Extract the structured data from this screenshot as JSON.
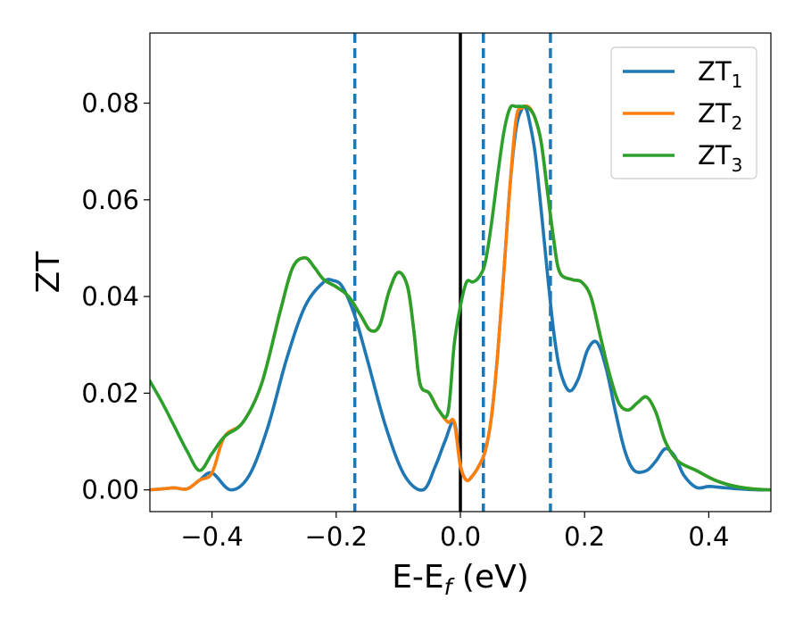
{
  "chart_data": {
    "type": "line",
    "xlabel_main": "E-E",
    "xlabel_sub": "f",
    "xlabel_unit": " (eV)",
    "ylabel": "ZT",
    "xlim": [
      -0.5,
      0.5
    ],
    "ylim": [
      -0.0045,
      0.0945
    ],
    "xticks": [
      {
        "v": -0.4,
        "label": "−0.4"
      },
      {
        "v": -0.2,
        "label": "−0.2"
      },
      {
        "v": 0.0,
        "label": "0.0"
      },
      {
        "v": 0.2,
        "label": "0.2"
      },
      {
        "v": 0.4,
        "label": "0.4"
      }
    ],
    "yticks": [
      {
        "v": 0.0,
        "label": "0.00"
      },
      {
        "v": 0.02,
        "label": "0.02"
      },
      {
        "v": 0.04,
        "label": "0.04"
      },
      {
        "v": 0.06,
        "label": "0.06"
      },
      {
        "v": 0.08,
        "label": "0.08"
      }
    ],
    "legend_position": "top-right",
    "grid": false,
    "reference_lines": [
      {
        "x": 0.0,
        "style": "solid",
        "color": "#000000"
      },
      {
        "x": -0.17,
        "style": "dashed",
        "color": "#1f77b4"
      },
      {
        "x": 0.037,
        "style": "dashed",
        "color": "#1f77b4"
      },
      {
        "x": 0.145,
        "style": "dashed",
        "color": "#1f77b4"
      }
    ],
    "series": [
      {
        "name_main": "ZT",
        "name_sub": "1",
        "color": "#1f77b4",
        "x": [
          -0.5,
          -0.48,
          -0.46,
          -0.44,
          -0.42,
          -0.4,
          -0.37,
          -0.34,
          -0.31,
          -0.28,
          -0.25,
          -0.22,
          -0.205,
          -0.19,
          -0.17,
          -0.15,
          -0.12,
          -0.09,
          -0.06,
          -0.04,
          -0.025,
          -0.01,
          0.0,
          0.01,
          0.02,
          0.03,
          0.04,
          0.05,
          0.06,
          0.07,
          0.08,
          0.09,
          0.1,
          0.105,
          0.11,
          0.12,
          0.13,
          0.14,
          0.15,
          0.16,
          0.175,
          0.19,
          0.205,
          0.22,
          0.235,
          0.25,
          0.265,
          0.28,
          0.3,
          0.315,
          0.33,
          0.345,
          0.36,
          0.38,
          0.4,
          0.42,
          0.45,
          0.48,
          0.5
        ],
        "y": [
          0.0,
          0.0002,
          0.0004,
          0.0002,
          0.002,
          0.0035,
          0.0,
          0.003,
          0.013,
          0.027,
          0.038,
          0.043,
          0.0433,
          0.042,
          0.036,
          0.027,
          0.013,
          0.003,
          0.0,
          0.005,
          0.01,
          0.014,
          0.005,
          0.002,
          0.003,
          0.005,
          0.008,
          0.015,
          0.028,
          0.045,
          0.063,
          0.075,
          0.079,
          0.079,
          0.077,
          0.07,
          0.058,
          0.045,
          0.033,
          0.025,
          0.0205,
          0.023,
          0.029,
          0.0305,
          0.025,
          0.016,
          0.008,
          0.004,
          0.004,
          0.006,
          0.0085,
          0.007,
          0.003,
          0.0005,
          0.0007,
          0.0005,
          0.0002,
          0.0,
          0.0
        ]
      },
      {
        "name_main": "ZT",
        "name_sub": "2",
        "color": "#ff7f0e",
        "x": [
          -0.5,
          -0.48,
          -0.46,
          -0.44,
          -0.42,
          -0.4,
          -0.38,
          -0.35,
          -0.32,
          -0.29,
          -0.27,
          -0.25,
          -0.235,
          -0.22,
          -0.2,
          -0.18,
          -0.16,
          -0.145,
          -0.13,
          -0.115,
          -0.1,
          -0.085,
          -0.075,
          -0.065,
          -0.05,
          -0.035,
          -0.02,
          -0.01,
          0.0,
          0.01,
          0.02,
          0.03,
          0.04,
          0.05,
          0.06,
          0.07,
          0.08,
          0.09,
          0.1,
          0.11,
          0.12,
          0.13,
          0.14,
          0.15,
          0.16,
          0.18,
          0.195,
          0.21,
          0.225,
          0.24,
          0.255,
          0.27,
          0.285,
          0.3,
          0.315,
          0.33,
          0.35,
          0.38,
          0.41,
          0.44,
          0.47,
          0.5
        ],
        "y": [
          0.0,
          0.0002,
          0.0004,
          0.0002,
          0.002,
          0.0035,
          0.011,
          0.014,
          0.022,
          0.037,
          0.046,
          0.048,
          0.046,
          0.0435,
          0.042,
          0.04,
          0.036,
          0.033,
          0.034,
          0.041,
          0.045,
          0.042,
          0.033,
          0.022,
          0.02,
          0.0165,
          0.014,
          0.014,
          0.005,
          0.002,
          0.003,
          0.005,
          0.008,
          0.015,
          0.028,
          0.045,
          0.063,
          0.077,
          0.079,
          0.0792,
          0.077,
          0.072,
          0.062,
          0.052,
          0.045,
          0.0435,
          0.043,
          0.04,
          0.032,
          0.024,
          0.018,
          0.0165,
          0.018,
          0.0192,
          0.016,
          0.01,
          0.006,
          0.004,
          0.002,
          0.0008,
          0.0002,
          0.0
        ]
      },
      {
        "name_main": "ZT",
        "name_sub": "3",
        "color": "#2ca02c",
        "x": [
          -0.5,
          -0.48,
          -0.46,
          -0.44,
          -0.42,
          -0.4,
          -0.38,
          -0.35,
          -0.32,
          -0.29,
          -0.27,
          -0.25,
          -0.235,
          -0.22,
          -0.2,
          -0.18,
          -0.16,
          -0.145,
          -0.13,
          -0.115,
          -0.1,
          -0.085,
          -0.075,
          -0.065,
          -0.05,
          -0.035,
          -0.02,
          -0.01,
          0.0,
          0.01,
          0.02,
          0.03,
          0.04,
          0.05,
          0.06,
          0.07,
          0.08,
          0.09,
          0.1,
          0.11,
          0.12,
          0.13,
          0.14,
          0.15,
          0.16,
          0.18,
          0.195,
          0.21,
          0.225,
          0.24,
          0.255,
          0.27,
          0.285,
          0.3,
          0.315,
          0.33,
          0.35,
          0.38,
          0.41,
          0.44,
          0.47,
          0.5
        ],
        "y": [
          0.0225,
          0.018,
          0.013,
          0.008,
          0.004,
          0.0075,
          0.011,
          0.014,
          0.022,
          0.037,
          0.046,
          0.048,
          0.046,
          0.0435,
          0.042,
          0.04,
          0.036,
          0.033,
          0.034,
          0.041,
          0.045,
          0.042,
          0.033,
          0.022,
          0.02,
          0.0165,
          0.016,
          0.03,
          0.038,
          0.043,
          0.043,
          0.044,
          0.047,
          0.055,
          0.065,
          0.074,
          0.079,
          0.0793,
          0.0793,
          0.079,
          0.077,
          0.072,
          0.062,
          0.052,
          0.045,
          0.0435,
          0.043,
          0.04,
          0.032,
          0.024,
          0.018,
          0.0165,
          0.018,
          0.0192,
          0.016,
          0.01,
          0.006,
          0.004,
          0.002,
          0.0008,
          0.0002,
          0.0
        ]
      }
    ]
  }
}
